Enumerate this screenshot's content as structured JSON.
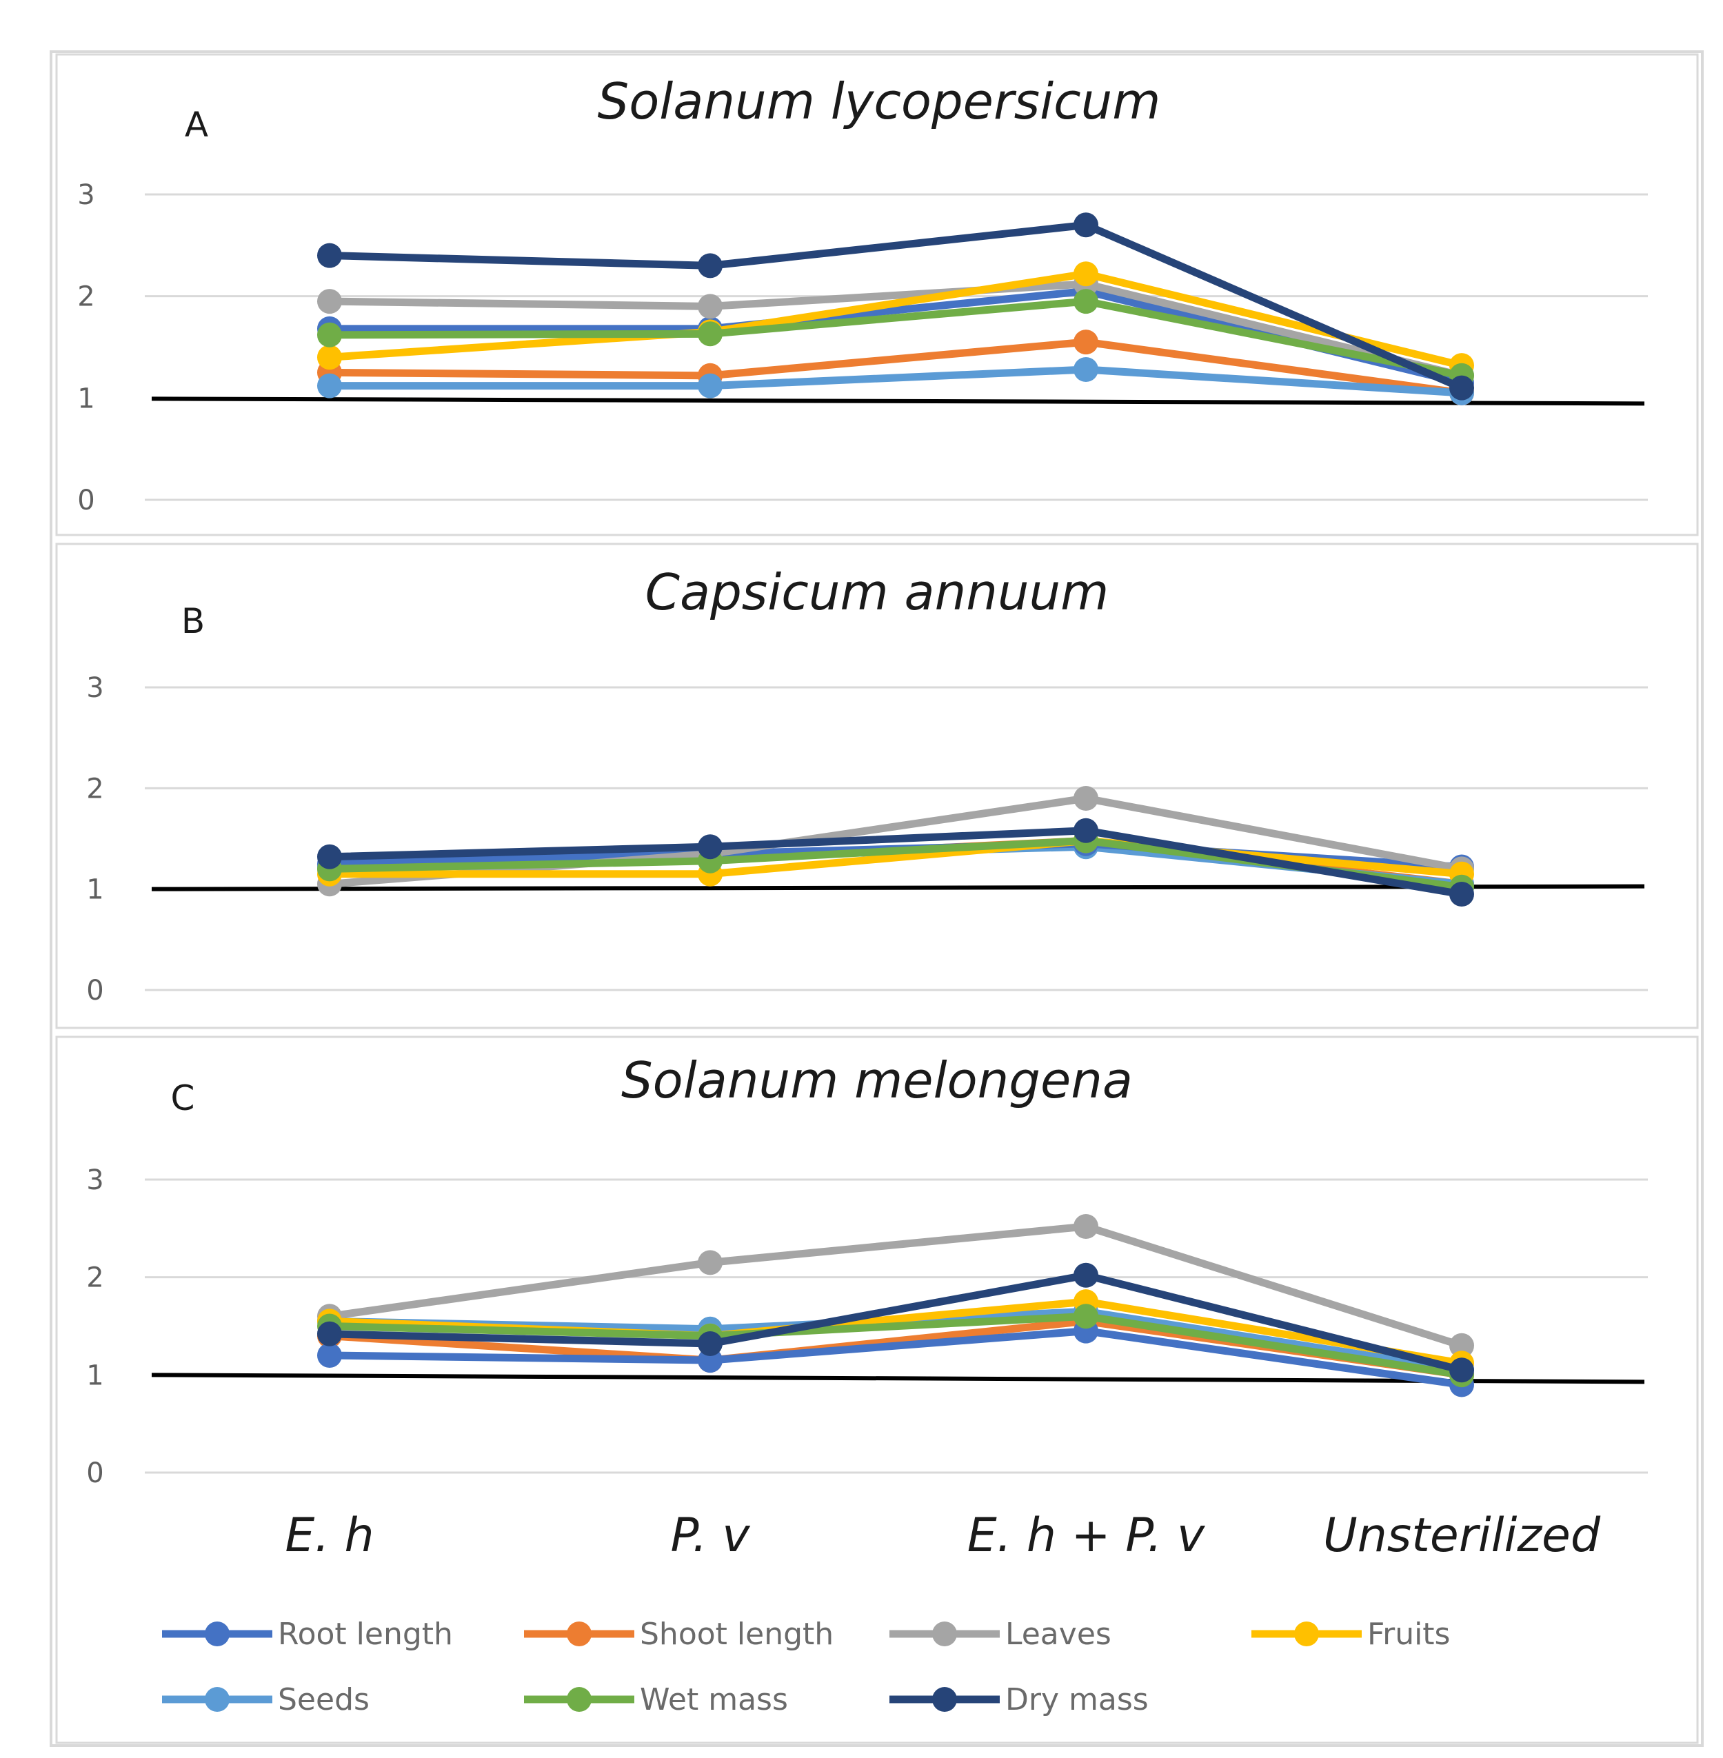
{
  "chart_data": [
    {
      "type": "line",
      "panel_label": "A",
      "title": "Solanum lycopersicum",
      "categories": [
        "E. h",
        "P. v",
        "E. h + P. v",
        "Unsterilized"
      ],
      "ylim": [
        0,
        3
      ],
      "yticks": [
        "0",
        "1",
        "2",
        "3"
      ],
      "reference_line": 1,
      "grid": true,
      "series": [
        {
          "name": "Root length",
          "values": [
            1.68,
            1.68,
            2.05,
            1.15
          ]
        },
        {
          "name": "Shoot length",
          "values": [
            1.25,
            1.22,
            1.55,
            1.05
          ]
        },
        {
          "name": "Leaves",
          "values": [
            1.95,
            1.9,
            2.12,
            1.22
          ]
        },
        {
          "name": "Fruits",
          "values": [
            1.4,
            1.65,
            2.22,
            1.32
          ]
        },
        {
          "name": "Seeds",
          "values": [
            1.12,
            1.12,
            1.28,
            1.05
          ]
        },
        {
          "name": "Wet mass",
          "values": [
            1.62,
            1.63,
            1.95,
            1.22
          ]
        },
        {
          "name": "Dry mass",
          "values": [
            2.4,
            2.3,
            2.7,
            1.1
          ]
        }
      ]
    },
    {
      "type": "line",
      "panel_label": "B",
      "title": "Capsicum annuum",
      "categories": [
        "E. h",
        "P. v",
        "E. h + P. v",
        "Unsterilized"
      ],
      "ylim": [
        0,
        3
      ],
      "yticks": [
        "0",
        "1",
        "2",
        "3"
      ],
      "reference_line": 1,
      "grid": true,
      "series": [
        {
          "name": "Root length",
          "values": [
            1.25,
            1.35,
            1.45,
            1.22
          ]
        },
        {
          "name": "Shoot length",
          "values": [
            1.2,
            1.3,
            1.48,
            1.05
          ]
        },
        {
          "name": "Leaves",
          "values": [
            1.05,
            1.35,
            1.9,
            1.2
          ]
        },
        {
          "name": "Fruits",
          "values": [
            1.15,
            1.15,
            1.48,
            1.15
          ]
        },
        {
          "name": "Seeds",
          "values": [
            1.22,
            1.32,
            1.42,
            1.05
          ]
        },
        {
          "name": "Wet mass",
          "values": [
            1.2,
            1.28,
            1.48,
            1.02
          ]
        },
        {
          "name": "Dry mass",
          "values": [
            1.32,
            1.42,
            1.58,
            0.95
          ]
        }
      ]
    },
    {
      "type": "line",
      "panel_label": "C",
      "title": "Solanum melongena",
      "categories": [
        "E. h",
        "P. v",
        "E. h + P. v",
        "Unsterilized"
      ],
      "ylim": [
        0,
        3
      ],
      "yticks": [
        "0",
        "1",
        "2",
        "3"
      ],
      "reference_line": 1,
      "grid": true,
      "series": [
        {
          "name": "Root length",
          "values": [
            1.2,
            1.15,
            1.45,
            0.9
          ]
        },
        {
          "name": "Shoot length",
          "values": [
            1.4,
            1.15,
            1.55,
            1.0
          ]
        },
        {
          "name": "Leaves",
          "values": [
            1.6,
            2.15,
            2.52,
            1.3
          ]
        },
        {
          "name": "Fruits",
          "values": [
            1.55,
            1.4,
            1.75,
            1.12
          ]
        },
        {
          "name": "Seeds",
          "values": [
            1.55,
            1.47,
            1.65,
            1.05
          ]
        },
        {
          "name": "Wet mass",
          "values": [
            1.5,
            1.4,
            1.6,
            1.0
          ]
        },
        {
          "name": "Dry mass",
          "values": [
            1.42,
            1.32,
            2.02,
            1.05
          ]
        }
      ]
    }
  ],
  "legend": [
    {
      "name": "Root length",
      "color": "#4472C4"
    },
    {
      "name": "Shoot length",
      "color": "#ED7D31"
    },
    {
      "name": "Leaves",
      "color": "#A5A5A5"
    },
    {
      "name": "Fruits",
      "color": "#FFC000"
    },
    {
      "name": "Seeds",
      "color": "#5B9BD5"
    },
    {
      "name": "Wet mass",
      "color": "#70AD47"
    },
    {
      "name": "Dry mass",
      "color": "#264478"
    }
  ],
  "colors": {
    "reference_line": "#000000",
    "gridline": "#d9d9d9",
    "panel_border": "#d9d9d9"
  }
}
